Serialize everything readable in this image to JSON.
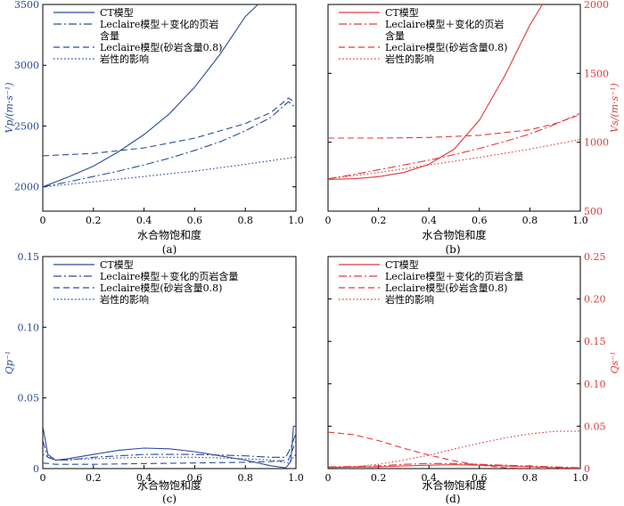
{
  "figure": {
    "panels": [
      "a",
      "b",
      "c",
      "d"
    ]
  },
  "chart_data": [
    {
      "id": "a",
      "type": "line",
      "panel_label": "(a)",
      "xlabel": "水合物饱和度",
      "ylabel": "Vp/(m·s⁻¹)",
      "xlim": [
        0,
        1.0
      ],
      "ylim": [
        1800,
        3500
      ],
      "xticks": [
        "0",
        "0.2",
        "0.4",
        "0.6",
        "0.8",
        "1.0"
      ],
      "yticks": [
        {
          "v": 2000,
          "label": "2000"
        },
        {
          "v": 2500,
          "label": "2500"
        },
        {
          "v": 3000,
          "label": "3000"
        },
        {
          "v": 3500,
          "label": "3500"
        }
      ],
      "y_axis_side": "left",
      "color": "#2b4c9b",
      "legend_position": "top-left",
      "series": [
        {
          "name": "CT模型",
          "style": "solid",
          "x": [
            0,
            0.1,
            0.2,
            0.3,
            0.4,
            0.5,
            0.6,
            0.7,
            0.8,
            0.85
          ],
          "y": [
            2000,
            2080,
            2170,
            2290,
            2430,
            2600,
            2820,
            3090,
            3400,
            3500
          ]
        },
        {
          "name": "Leclaire模型＋变化的页岩含量",
          "style": "dashdot",
          "x": [
            0,
            0.1,
            0.2,
            0.3,
            0.4,
            0.5,
            0.6,
            0.7,
            0.8,
            0.9,
            0.97,
            1.0
          ],
          "y": [
            2000,
            2040,
            2085,
            2130,
            2180,
            2235,
            2300,
            2370,
            2460,
            2570,
            2700,
            2650
          ]
        },
        {
          "name": "Leclaire模型(砂岩含量0.8)",
          "style": "dashed",
          "x": [
            0,
            0.2,
            0.4,
            0.6,
            0.8,
            0.9,
            0.97,
            1.0
          ],
          "y": [
            2255,
            2275,
            2320,
            2400,
            2520,
            2610,
            2730,
            2690
          ]
        },
        {
          "name": "岩性的影响",
          "style": "dotted",
          "x": [
            0,
            0.2,
            0.4,
            0.6,
            0.8,
            1.0
          ],
          "y": [
            2000,
            2040,
            2085,
            2130,
            2185,
            2245
          ]
        }
      ]
    },
    {
      "id": "b",
      "type": "line",
      "panel_label": "(b)",
      "xlabel": "水合物饱和度",
      "ylabel": "Vs/(m·s⁻¹)",
      "xlim": [
        0,
        1.0
      ],
      "ylim": [
        500,
        2000
      ],
      "xticks": [
        "0",
        "0.2",
        "0.4",
        "0.6",
        "0.8",
        "1.0"
      ],
      "yticks": [
        {
          "v": 500,
          "label": "500"
        },
        {
          "v": 1000,
          "label": "1000"
        },
        {
          "v": 1500,
          "label": "1500"
        },
        {
          "v": 2000,
          "label": "2000"
        }
      ],
      "y_axis_side": "right",
      "color": "#e23a3a",
      "legend_position": "top-left",
      "series": [
        {
          "name": "CT模型",
          "style": "solid",
          "x": [
            0,
            0.1,
            0.2,
            0.3,
            0.4,
            0.5,
            0.6,
            0.7,
            0.8,
            0.85
          ],
          "y": [
            730,
            735,
            750,
            780,
            840,
            950,
            1160,
            1480,
            1850,
            2000
          ]
        },
        {
          "name": "Leclaire模型＋变化的页岩含量",
          "style": "dashdot",
          "x": [
            0,
            0.1,
            0.2,
            0.3,
            0.4,
            0.5,
            0.6,
            0.7,
            0.8,
            0.9,
            1.0
          ],
          "y": [
            735,
            765,
            800,
            835,
            870,
            910,
            955,
            1005,
            1060,
            1130,
            1210
          ]
        },
        {
          "name": "Leclaire模型(砂岩含量0.8)",
          "style": "dashed",
          "x": [
            0,
            0.2,
            0.4,
            0.6,
            0.8,
            0.9,
            1.0
          ],
          "y": [
            1030,
            1030,
            1035,
            1050,
            1090,
            1135,
            1200
          ]
        },
        {
          "name": "岩性的影响",
          "style": "dotted",
          "x": [
            0,
            0.2,
            0.4,
            0.6,
            0.8,
            1.0
          ],
          "y": [
            735,
            780,
            835,
            890,
            950,
            1020
          ]
        }
      ]
    },
    {
      "id": "c",
      "type": "line",
      "panel_label": "(c)",
      "xlabel": "水合物饱和度",
      "ylabel": "Qp⁻¹",
      "xlim": [
        0,
        1.0
      ],
      "ylim": [
        0,
        0.15
      ],
      "xticks": [
        "0",
        "0.2",
        "0.4",
        "0.6",
        "0.8",
        "1.0"
      ],
      "yticks": [
        {
          "v": 0,
          "label": "0"
        },
        {
          "v": 0.05,
          "label": "0.05"
        },
        {
          "v": 0.1,
          "label": "0.10"
        },
        {
          "v": 0.15,
          "label": "0.15"
        }
      ],
      "y_axis_side": "left",
      "color": "#2b4c9b",
      "legend_position": "top-left",
      "series": [
        {
          "name": "CT模型",
          "style": "solid",
          "x": [
            0,
            0.02,
            0.05,
            0.1,
            0.2,
            0.3,
            0.4,
            0.5,
            0.6,
            0.7,
            0.8,
            0.9,
            0.96,
            0.98,
            0.99,
            1.0
          ],
          "y": [
            0.03,
            0.01,
            0.006,
            0.007,
            0.01,
            0.013,
            0.0145,
            0.014,
            0.012,
            0.009,
            0.006,
            0.002,
            0.0005,
            0.005,
            0.03,
            0.03
          ]
        },
        {
          "name": "Leclaire模型＋变化的页岩含量",
          "style": "dashdot",
          "x": [
            0,
            0.02,
            0.05,
            0.1,
            0.2,
            0.3,
            0.4,
            0.5,
            0.6,
            0.7,
            0.8,
            0.9,
            0.96,
            0.98,
            1.0
          ],
          "y": [
            0.02,
            0.008,
            0.006,
            0.006,
            0.008,
            0.009,
            0.01,
            0.01,
            0.01,
            0.0095,
            0.009,
            0.008,
            0.008,
            0.015,
            0.025
          ]
        },
        {
          "name": "Leclaire模型(砂岩含量0.8)",
          "style": "dashed",
          "x": [
            0,
            0.05,
            0.2,
            0.4,
            0.6,
            0.8,
            0.9,
            0.97,
            0.99,
            1.0
          ],
          "y": [
            0.004,
            0.003,
            0.003,
            0.0035,
            0.004,
            0.0045,
            0.005,
            0.006,
            0.015,
            0.02
          ]
        },
        {
          "name": "岩性的影响",
          "style": "dotted",
          "x": [
            0,
            0.05,
            0.2,
            0.4,
            0.6,
            0.8,
            0.9,
            0.97,
            1.0
          ],
          "y": [
            0.01,
            0.006,
            0.007,
            0.008,
            0.008,
            0.007,
            0.006,
            0.004,
            0.01
          ]
        }
      ]
    },
    {
      "id": "d",
      "type": "line",
      "panel_label": "(d)",
      "xlabel": "水合物饱和度",
      "ylabel": "Qs⁻¹",
      "xlim": [
        0,
        1.0
      ],
      "ylim": [
        0,
        0.25
      ],
      "xticks": [
        "0",
        "0.2",
        "0.4",
        "0.6",
        "0.8",
        "1.0"
      ],
      "yticks": [
        {
          "v": 0,
          "label": "0"
        },
        {
          "v": 0.05,
          "label": "0.05"
        },
        {
          "v": 0.1,
          "label": "0.10"
        },
        {
          "v": 0.15,
          "label": "0.15"
        },
        {
          "v": 0.2,
          "label": "0.20"
        },
        {
          "v": 0.25,
          "label": "0.25"
        }
      ],
      "y_axis_side": "right",
      "color": "#e23a3a",
      "legend_position": "top-left",
      "series": [
        {
          "name": "CT模型",
          "style": "solid",
          "x": [
            0,
            0.2,
            0.3,
            0.4,
            0.5,
            0.6,
            0.7,
            0.8,
            0.9,
            1.0
          ],
          "y": [
            0.0015,
            0.002,
            0.003,
            0.004,
            0.0045,
            0.004,
            0.003,
            0.002,
            0.001,
            0.0005
          ]
        },
        {
          "name": "Leclaire模型＋变化的页岩含量",
          "style": "dashdot",
          "x": [
            0,
            0.2,
            0.3,
            0.4,
            0.5,
            0.6,
            0.7,
            0.8,
            0.9,
            1.0
          ],
          "y": [
            0.002,
            0.003,
            0.005,
            0.006,
            0.006,
            0.005,
            0.004,
            0.003,
            0.002,
            0.001
          ]
        },
        {
          "name": "Leclaire模型(砂岩含量0.8)",
          "style": "dashed",
          "x": [
            0,
            0.1,
            0.2,
            0.3,
            0.4,
            0.5,
            0.6,
            0.7,
            0.8,
            1.0
          ],
          "y": [
            0.043,
            0.04,
            0.033,
            0.024,
            0.016,
            0.009,
            0.004,
            0.001,
            0.0,
            0.0
          ]
        },
        {
          "name": "岩性的影响",
          "style": "dotted",
          "x": [
            0,
            0.1,
            0.2,
            0.3,
            0.4,
            0.5,
            0.6,
            0.7,
            0.8,
            0.9,
            1.0
          ],
          "y": [
            0.001,
            0.002,
            0.005,
            0.01,
            0.016,
            0.023,
            0.03,
            0.036,
            0.041,
            0.044,
            0.044
          ]
        }
      ]
    }
  ]
}
